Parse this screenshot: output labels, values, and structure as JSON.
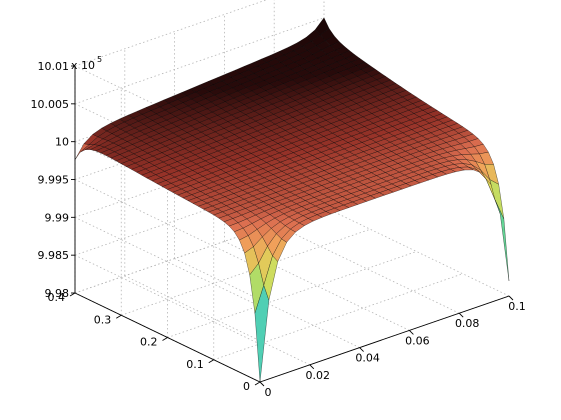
{
  "chart_data": {
    "type": "surface",
    "title": "",
    "xlabel": "",
    "ylabel": "",
    "zlabel": "",
    "exponent": {
      "prefix": "x 10",
      "power": "5"
    },
    "x_ticks": [
      "0",
      "0.02",
      "0.04",
      "0.06",
      "0.08",
      "0.1"
    ],
    "y_ticks": [
      "0",
      "0.1",
      "0.2",
      "0.3",
      "0.4"
    ],
    "z_ticks": [
      "9.98",
      "9.985",
      "9.99",
      "9.995",
      "10",
      "10.005",
      "10.01"
    ],
    "xlim": [
      0,
      0.1
    ],
    "ylim": [
      0,
      0.4
    ],
    "zlim": [
      998000,
      1001000
    ],
    "grid": true,
    "colormap": "hot-to-jet",
    "surface": {
      "baseline": 999900,
      "corner_dips": [
        {
          "x": 0,
          "y": 0,
          "z": 998000
        },
        {
          "x": 0.1,
          "y": 0,
          "z": 998200
        },
        {
          "x": 0,
          "y": 0.4,
          "z": 999600
        },
        {
          "x": 0.1,
          "y": 0.4,
          "z": 1000100
        }
      ],
      "rear_edge_rise": 1000300
    }
  }
}
